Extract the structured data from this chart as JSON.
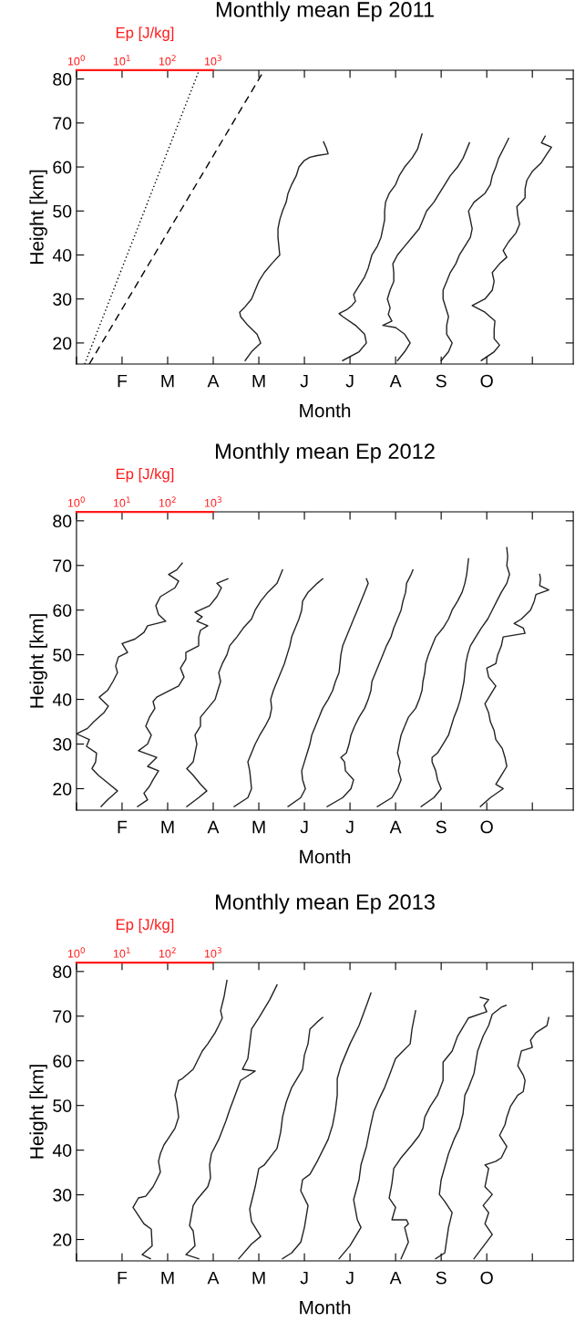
{
  "chart_data": [
    {
      "type": "line",
      "title": "Monthly mean Ep 2011",
      "x2label": "Ep [J/kg]",
      "ylabel": "Height [km]",
      "xlabel": "Month",
      "log": "x2",
      "x2lim": [
        1,
        79000000000
      ],
      "x2ticks": [
        {
          "value": 1,
          "label": "10$^{0}$"
        },
        {
          "value": 10,
          "label": "10$^{1}$"
        },
        {
          "value": 100,
          "label": "10$^{2}$"
        },
        {
          "value": 1000,
          "label": "10$^{3}$"
        },
        {
          "value": 10000,
          "label": null
        },
        {
          "value": 100000,
          "label": null
        },
        {
          "value": 1000000,
          "label": null
        },
        {
          "value": 10000000,
          "label": null
        },
        {
          "value": 100000000,
          "label": null
        },
        {
          "value": 1000000000,
          "label": null
        },
        {
          "value": 10000000000,
          "label": null
        }
      ],
      "categories": [
        null,
        "F",
        "M",
        "A",
        "M",
        "J",
        "J",
        "A",
        "S",
        "O",
        null
      ],
      "ylim": [
        15.2,
        82
      ],
      "yticks": [
        20,
        30,
        40,
        50,
        60,
        70,
        80
      ],
      "series": [
        {
          "axis": "x2",
          "color": "#000000",
          "line_style": "dotted",
          "x": [
            1.51,
            479
          ],
          "values": [
            15.2,
            81.7
          ]
        },
        {
          "axis": "x2",
          "color": "#000000",
          "line_style": "dashed",
          "x": [
            1.91,
            12600
          ],
          "values": [
            15.2,
            81.7
          ]
        },
        {
          "axis": "x2",
          "color": "#222222",
          "x": [
            5010.0,
            6920.0,
            11000.0,
            9120.0,
            5750.0,
            3980.0,
            3800.0,
            4790.0,
            6920.0,
            8320.0,
            10000.0,
            13200.0,
            19100.0,
            28800.0,
            27500.0,
            26300.0,
            26300.0,
            28800.0,
            33100.0,
            39800.0,
            43700.0,
            52500.0,
            66100.0,
            75900.0,
            100000.0,
            132000.0,
            191000.0,
            331000.0,
            302000.0,
            263000.0
          ],
          "values": [
            16,
            18,
            20,
            22,
            24,
            26,
            27,
            28,
            30,
            32,
            34,
            36,
            38,
            40,
            42,
            44,
            46,
            48,
            50,
            52,
            54,
            56,
            58,
            60,
            61.5,
            62.2,
            62.6,
            63,
            64.3,
            65.7
          ]
        },
        {
          "axis": "x2",
          "color": "#222222",
          "x": [
            692000.0,
            1580000.0,
            2290000.0,
            2090000.0,
            1320000.0,
            692000.0,
            575000.0,
            832000.0,
            1100000.0,
            1320000.0,
            1200000.0,
            1580000.0,
            2090000.0,
            2510000.0,
            3020000.0,
            3980000.0,
            4790000.0,
            5250000.0,
            5750000.0,
            5750000.0,
            6030000.0,
            7240000.0,
            10000000.0,
            12000000.0,
            15800000.0,
            22900000.0,
            30200000.0,
            38000000.0
          ],
          "values": [
            16,
            18,
            20,
            22,
            24,
            26,
            26.7,
            27.5,
            28.5,
            29.5,
            31,
            33,
            35,
            37,
            40,
            42,
            44,
            46,
            48,
            50,
            52,
            54,
            56,
            58,
            60,
            62,
            64,
            67.5
          ]
        },
        {
          "axis": "x2",
          "color": "#222222",
          "x": [
            11000000.0,
            15800000.0,
            20900000.0,
            15800000.0,
            10000000.0,
            5250000.0,
            8320000.0,
            6920000.0,
            7590000.0,
            6610000.0,
            7590000.0,
            9120000.0,
            9120000.0,
            8710000.0,
            11000000.0,
            15800000.0,
            22900000.0,
            33100000.0,
            39800000.0,
            47900000.0,
            69200000.0,
            91200000.0,
            120000000.0,
            158000000.0,
            229000000.0,
            302000000.0,
            417000000.0
          ],
          "values": [
            16,
            18,
            20,
            22,
            23.5,
            24,
            25,
            26.5,
            28,
            30,
            32,
            34,
            36,
            38,
            40,
            42,
            44,
            46,
            48,
            50,
            52,
            54,
            56,
            58,
            60,
            62,
            65.5
          ]
        },
        {
          "axis": "x2",
          "color": "#222222",
          "x": [
            100000000.0,
            145000000.0,
            174000000.0,
            132000000.0,
            132000000.0,
            145000000.0,
            126000000.0,
            110000000.0,
            110000000.0,
            132000000.0,
            158000000.0,
            209000000.0,
            251000000.0,
            331000000.0,
            437000000.0,
            479000000.0,
            437000000.0,
            398000000.0,
            525000000.0,
            912000000.0,
            1200000000.0,
            1320000000.0,
            1580000000.0,
            1820000000.0,
            2290000000.0,
            3020000000.0
          ],
          "values": [
            16,
            18,
            20,
            22,
            24,
            26,
            28,
            30,
            32,
            34,
            36,
            38,
            40,
            42,
            44,
            46,
            48,
            50,
            52,
            54,
            56,
            58,
            60,
            62,
            64,
            66.5
          ]
        },
        {
          "axis": "x2",
          "color": "#222222",
          "x": [
            759000000.0,
            1450000000.0,
            1910000000.0,
            1450000000.0,
            1450000000.0,
            1510000000.0,
            912000000.0,
            479000000.0,
            912000000.0,
            1320000000.0,
            1450000000.0,
            1320000000.0,
            1910000000.0,
            2750000000.0,
            2290000000.0,
            3020000000.0,
            4370000000.0,
            5250000000.0,
            4790000000.0,
            4570000000.0,
            6920000000.0,
            6920000000.0,
            7590000000.0,
            10000000000.0,
            15800000000.0,
            20900000000.0,
            26300000000.0,
            15800000000.0,
            19100000000.0
          ],
          "values": [
            16,
            18,
            19.5,
            21,
            23,
            25,
            27,
            28.5,
            30,
            32,
            34,
            36,
            38,
            39.5,
            41,
            43,
            45,
            47,
            49,
            51,
            53,
            55,
            57,
            59,
            61,
            63,
            64.5,
            65.5,
            67
          ]
        }
      ]
    },
    {
      "type": "line",
      "title": "Monthly mean Ep 2012",
      "x2label": "Ep [J/kg]",
      "ylabel": "Height [km]",
      "xlabel": "Month",
      "log": "x2",
      "x2lim": [
        1,
        79000000000
      ],
      "x2ticks": [
        {
          "value": 1,
          "label": "10$^{0}$"
        },
        {
          "value": 10,
          "label": "10$^{1}$"
        },
        {
          "value": 100,
          "label": "10$^{2}$"
        },
        {
          "value": 1000,
          "label": "10$^{3}$"
        },
        {
          "value": 10000,
          "label": null
        },
        {
          "value": 100000,
          "label": null
        },
        {
          "value": 1000000,
          "label": null
        },
        {
          "value": 10000000,
          "label": null
        },
        {
          "value": 100000000,
          "label": null
        },
        {
          "value": 1000000000,
          "label": null
        },
        {
          "value": 10000000000,
          "label": null
        }
      ],
      "categories": [
        null,
        "F",
        "M",
        "A",
        "M",
        "J",
        "J",
        "A",
        "S",
        "O",
        null
      ],
      "ylim": [
        15.2,
        82
      ],
      "yticks": [
        20,
        30,
        40,
        50,
        60,
        70,
        80
      ],
      "series": [
        {
          "axis": "x2",
          "color": "#222222",
          "x": [
            3.47,
            4.79,
            7.94,
            5.25,
            3.02,
            2.19,
            2.63,
            2.75,
            1.66,
            1.91,
            1.0,
            1.74,
            2.4,
            3.98,
            5.01,
            3.16,
            4.79,
            6.31,
            7.94,
            7.24,
            8.32,
            13.2,
            10.0,
            19.1,
            30.2,
            36.3,
            91.2,
            63.1,
            55.0,
            69.2,
            145,
            174,
            105,
            158,
            209
          ],
          "values": [
            16,
            17.5,
            19.5,
            21,
            23,
            24.5,
            26,
            28,
            29.5,
            31,
            32.3,
            33.5,
            35,
            37,
            38.5,
            40.5,
            42,
            44,
            46,
            47.5,
            49.5,
            50.5,
            52.5,
            53.5,
            55,
            56.5,
            57.5,
            59,
            61,
            63,
            65,
            66.5,
            68,
            69,
            70.5
          ]
        },
        {
          "axis": "x2",
          "color": "#222222",
          "x": [
            21.9,
            36.3,
            30.2,
            39.8,
            47.9,
            63.1,
            36.3,
            57.5,
            22.9,
            36.3,
            43.7,
            33.1,
            39.8,
            52.5,
            47.9,
            57.5,
            110,
            174,
            229,
            191,
            251,
            251,
            479,
            479,
            525,
            759,
            437,
            575,
            398,
            832,
            1200.0,
            1510.0,
            1200.0,
            2090.0
          ],
          "values": [
            16,
            17.5,
            19,
            20.5,
            22,
            24,
            25,
            27,
            28.5,
            30,
            32,
            34,
            36,
            38,
            39.5,
            40.5,
            42,
            43,
            45,
            47,
            49,
            50.5,
            52,
            54,
            55.5,
            56.5,
            57.5,
            58.5,
            59.5,
            61,
            63,
            65,
            66,
            67
          ]
        },
        {
          "axis": "x2",
          "color": "#222222",
          "x": [
            263,
            479,
            724,
            525,
            363,
            263,
            363,
            398,
            437,
            398,
            525,
            525,
            759,
            1100.0,
            1260.0,
            1450.0,
            1320.0,
            1580.0,
            2000.0,
            2290.0,
            3310.0,
            4570.0,
            6920.0,
            8320.0,
            11000.0,
            15800.0,
            25100.0,
            28800.0,
            33100.0
          ],
          "values": [
            16,
            18,
            19.5,
            21,
            23,
            24.5,
            26,
            28,
            30,
            32,
            34,
            36,
            38,
            40,
            42,
            44,
            46,
            48,
            50,
            52,
            54,
            56,
            58,
            60,
            62,
            64,
            66,
            67.5,
            69
          ]
        },
        {
          "axis": "x2",
          "color": "#222222",
          "x": [
            2880.0,
            5750.0,
            6920.0,
            6610.0,
            6310.0,
            5750.0,
            6920.0,
            8320.0,
            10500.0,
            13800.0,
            17400.0,
            19100.0,
            18200.0,
            20900.0,
            25100.0,
            30200.0,
            36300.0,
            41700.0,
            47900.0,
            52500.0,
            63100.0,
            75900.0,
            87100.0,
            91200.0,
            120000.0,
            191000.0,
            251000.0
          ],
          "values": [
            16,
            18,
            20,
            22,
            24,
            26,
            28,
            30,
            32,
            34,
            36,
            38,
            40,
            42,
            44,
            46,
            48,
            50,
            52,
            54,
            56,
            58,
            60,
            62,
            64,
            66,
            67
          ]
        },
        {
          "axis": "x2",
          "color": "#222222",
          "x": [
            43700.0,
            83200.0,
            105000.0,
            91200.0,
            87100.0,
            100000.0,
            115000.0,
            132000.0,
            145000.0,
            174000.0,
            209000.0,
            251000.0,
            331000.0,
            417000.0,
            479000.0,
            575000.0,
            603000.0,
            631000.0,
            692000.0,
            832000.0,
            1000000.0,
            1200000.0,
            1450000.0,
            1740000.0,
            2090000.0,
            2510000.0,
            2290000.0
          ],
          "values": [
            16,
            18,
            20,
            22,
            24,
            26,
            28,
            30,
            32,
            34,
            36,
            38,
            40,
            42,
            44,
            46,
            48,
            50,
            52,
            54,
            56,
            58,
            60,
            62,
            64,
            66,
            67
          ]
        },
        {
          "axis": "x2",
          "color": "#222222",
          "x": [
            316000.0,
            692000.0,
            1050000.0,
            1200000.0,
            794000.0,
            759000.0,
            631000.0,
            832000.0,
            955000.0,
            1050000.0,
            1260000.0,
            1580000.0,
            2090000.0,
            2510000.0,
            2880000.0,
            3020000.0,
            3630000.0,
            4370000.0,
            5250000.0,
            6310000.0,
            7940000.0,
            9120000.0,
            11000000.0,
            13200000.0,
            14500000.0,
            16600000.0,
            17400000.0,
            21900000.0,
            24000000.0
          ],
          "values": [
            16,
            18,
            20,
            22,
            24,
            26,
            27,
            28,
            30,
            32,
            34,
            36,
            38,
            40,
            42,
            44,
            46,
            48,
            50,
            52,
            54,
            56,
            58,
            60,
            62,
            64,
            66,
            68,
            69
          ]
        },
        {
          "axis": "x2",
          "color": "#222222",
          "x": [
            3980000.0,
            8320000.0,
            11000000.0,
            13200000.0,
            11500000.0,
            12600000.0,
            11000000.0,
            12000000.0,
            13200000.0,
            15800000.0,
            19100000.0,
            27500000.0,
            33100000.0,
            38000000.0,
            39800000.0,
            43700000.0,
            45700000.0,
            52500000.0,
            63100000.0,
            75900000.0,
            110000000.0,
            145000000.0,
            174000000.0,
            229000000.0,
            288000000.0,
            331000000.0,
            363000000.0,
            398000000.0
          ],
          "values": [
            16,
            18,
            20,
            22,
            24,
            26,
            28,
            30,
            32,
            34,
            36,
            38,
            40,
            42,
            44,
            46,
            48,
            50,
            52,
            54,
            56,
            58,
            60,
            62,
            64,
            66,
            68,
            71.5
          ]
        },
        {
          "axis": "x2",
          "color": "#222222",
          "x": [
            36300000.0,
            69200000.0,
            100000000.0,
            83200000.0,
            75900000.0,
            63100000.0,
            63100000.0,
            83200000.0,
            110000000.0,
            145000000.0,
            166000000.0,
            191000000.0,
            229000000.0,
            263000000.0,
            288000000.0,
            316000000.0,
            331000000.0,
            347000000.0,
            380000000.0,
            437000000.0,
            575000000.0,
            759000000.0,
            1050000000.0,
            1320000000.0,
            1660000000.0,
            2090000000.0,
            2750000000.0,
            3160000000.0,
            2750000000.0,
            2880000000.0,
            2750000000.0
          ],
          "values": [
            16,
            18,
            20,
            22,
            24,
            26,
            27,
            28,
            30,
            32,
            34,
            36,
            38,
            40,
            42,
            44,
            46,
            48,
            50,
            52,
            54,
            56,
            58,
            60,
            62,
            64,
            66,
            68,
            70,
            72,
            74
          ]
        },
        {
          "axis": "x2",
          "color": "#222222",
          "x": [
            724000000.0,
            1200000000.0,
            2290000000.0,
            1580000000.0,
            2090000000.0,
            2750000000.0,
            2510000000.0,
            2190000000.0,
            1580000000.0,
            1450000000.0,
            1200000000.0,
            1100000000.0,
            912000000.0,
            1200000000.0,
            1580000000.0,
            1100000000.0,
            1000000000.0,
            1580000000.0,
            1740000000.0,
            2090000000.0,
            2290000000.0,
            6920000000.0,
            6310000000.0,
            3980000000.0,
            5750000000.0,
            9120000000.0,
            11000000000.0,
            12000000000.0,
            22900000000.0,
            14500000000.0,
            15100000000.0,
            14500000000.0
          ],
          "values": [
            16,
            18,
            20,
            21,
            23,
            25,
            27,
            29,
            31,
            33,
            35,
            37,
            39,
            41,
            43,
            45,
            47,
            48,
            50,
            52,
            54,
            54.8,
            56,
            57,
            58,
            60,
            62,
            63.5,
            64.5,
            65.5,
            67,
            68
          ]
        }
      ]
    },
    {
      "type": "line",
      "title": "Monthly mean Ep 2013",
      "x2label": "Ep [J/kg]",
      "ylabel": "Height [km]",
      "xlabel": "Month",
      "log": "x2",
      "x2lim": [
        1,
        79000000000
      ],
      "x2ticks": [
        {
          "value": 1,
          "label": "10$^{0}$"
        },
        {
          "value": 10,
          "label": "10$^{1}$"
        },
        {
          "value": 100,
          "label": "10$^{2}$"
        },
        {
          "value": 1000,
          "label": "10$^{3}$"
        },
        {
          "value": 10000,
          "label": null
        },
        {
          "value": 100000,
          "label": null
        },
        {
          "value": 1000000,
          "label": null
        },
        {
          "value": 10000000,
          "label": null
        },
        {
          "value": 100000000,
          "label": null
        },
        {
          "value": 1000000000,
          "label": null
        },
        {
          "value": 10000000000,
          "label": null
        }
      ],
      "categories": [
        null,
        "F",
        "M",
        "A",
        "M",
        "J",
        "J",
        "A",
        "S",
        "O",
        null
      ],
      "ylim": [
        15.2,
        82
      ],
      "yticks": [
        20,
        30,
        40,
        50,
        60,
        70,
        80
      ],
      "series": [
        {
          "axis": "x2",
          "color": "#222222",
          "x": [
            41.7,
            27.5,
            45.7,
            43.7,
            30.2,
            17.4,
            22.9,
            33.1,
            47.9,
            57.5,
            69.2,
            63.1,
            69.2,
            83.2,
            100,
            145,
            174,
            158,
            145,
            174,
            209,
            363,
            575,
            759,
            1100.0,
            1320.0,
            1580.0,
            1450.0,
            1740.0,
            2000.0
          ],
          "values": [
            15.7,
            16.6,
            18.6,
            22.3,
            23.5,
            27.2,
            29.3,
            29.7,
            31.8,
            33.4,
            35.1,
            37.5,
            39.2,
            41.2,
            42.4,
            44.9,
            47.4,
            50.7,
            52.3,
            55.6,
            56.0,
            58.1,
            62.2,
            63.8,
            66.3,
            67.9,
            69.6,
            71.2,
            74.5,
            78.0
          ]
        },
        {
          "axis": "x2",
          "color": "#222222",
          "x": [
            479,
            251,
            398,
            363,
            302,
            363,
            437,
            759,
            871,
            832,
            912,
            1320.0,
            1910.0,
            2290.0,
            3980.0,
            8320.0,
            4370.0,
            5750.0,
            6310.0,
            6920.0,
            10000.0,
            17400.0,
            25100.0
          ],
          "values": [
            15.7,
            16.6,
            18.6,
            21.9,
            23.1,
            27.6,
            28.9,
            31.8,
            33.8,
            36.7,
            39.2,
            42.4,
            46.6,
            49.0,
            55.6,
            57.7,
            58.1,
            60.5,
            63.8,
            67.1,
            69.6,
            73.7,
            77.0
          ]
        },
        {
          "axis": "x2",
          "color": "#222222",
          "x": [
            3630.0,
            6920.0,
            11000.0,
            6920.0,
            6310.0,
            8320.0,
            10000.0,
            13200.0,
            25100.0,
            30200.0,
            33100.0,
            39800.0,
            52500.0,
            91200.0,
            100000.0,
            120000.0,
            132000.0,
            191000.0,
            251000.0
          ],
          "values": [
            15.7,
            19.0,
            20.7,
            24.0,
            26.8,
            31.8,
            35.9,
            36.7,
            40.4,
            44.1,
            47.4,
            50.7,
            54.0,
            58.1,
            61.3,
            63.8,
            67.1,
            68.7,
            69.7
          ]
        },
        {
          "axis": "x2",
          "color": "#222222",
          "x": [
            33100.0,
            52500.0,
            83200.0,
            100000.0,
            120000.0,
            83200.0,
            91200.0,
            132000.0,
            191000.0,
            331000.0,
            417000.0,
            479000.0,
            525000.0,
            525000.0,
            631000.0,
            1000000.0,
            1580000.0,
            2400000.0,
            2880000.0
          ],
          "values": [
            15.7,
            17.0,
            19.4,
            22.7,
            27.6,
            30.9,
            33.4,
            34.6,
            37.5,
            42.4,
            45.7,
            49.0,
            52.3,
            56.0,
            58.9,
            63.8,
            67.9,
            72.9,
            75.2
          ]
        },
        {
          "axis": "x2",
          "color": "#222222",
          "x": [
            575000.0,
            1000000.0,
            1740000.0,
            1450000.0,
            1200000.0,
            1580000.0,
            1740000.0,
            2290000.0,
            2750000.0,
            3310000.0,
            4370000.0,
            5750000.0,
            7590000.0,
            10000000.0,
            14500000.0,
            20900000.0,
            22900000.0,
            27500000.0
          ],
          "values": [
            15.7,
            18.6,
            22.7,
            24.4,
            28.9,
            33.4,
            36.7,
            40.8,
            44.9,
            48.6,
            51.5,
            54.0,
            57.2,
            60.5,
            62.2,
            63.8,
            67.1,
            71.2
          ]
        },
        {
          "axis": "x2",
          "color": "#222222",
          "x": [
            13200000.0,
            19100000.0,
            15800000.0,
            19100000.0,
            17400000.0,
            8320000.0,
            10000000.0,
            7240000.0,
            8320000.0,
            9120000.0,
            11000000.0,
            13200000.0,
            22900000.0,
            33100000.0,
            39800000.0,
            43700000.0,
            57500000.0,
            83200000.0,
            110000000.0,
            110000000.0,
            174000000.0,
            229000000.0,
            398000000.0,
            1000000000.0,
            871000000.0,
            1100000000.0,
            724000000.0
          ],
          "values": [
            15.7,
            19.4,
            22.7,
            23.5,
            24.4,
            24.4,
            27.2,
            29.3,
            32.6,
            35.9,
            37.1,
            38.3,
            41.2,
            43.3,
            44.9,
            47.4,
            49.8,
            52.3,
            55.6,
            59.7,
            62.2,
            65.5,
            69.6,
            71.0,
            72.4,
            73.7,
            74.2
          ]
        },
        {
          "axis": "x2",
          "color": "#222222",
          "x": [
            75900000.0,
            120000000.0,
            145000000.0,
            174000000.0,
            120000000.0,
            91200000.0,
            100000000.0,
            145000000.0,
            191000000.0,
            251000000.0,
            302000000.0,
            331000000.0,
            398000000.0,
            525000000.0,
            631000000.0,
            832000000.0,
            1100000000.0,
            1320000000.0,
            2090000000.0,
            2630000000.0
          ],
          "values": [
            15.7,
            17.0,
            22.7,
            26.0,
            28.5,
            30.1,
            33.4,
            39.2,
            42.4,
            44.9,
            48.2,
            52.3,
            54.0,
            57.2,
            62.2,
            65.5,
            67.9,
            70.4,
            72.0,
            72.4
          ]
        },
        {
          "axis": "x2",
          "color": "#222222",
          "x": [
            525000000.0,
            1320000000.0,
            912000000.0,
            1100000000.0,
            832000000.0,
            1320000000.0,
            912000000.0,
            1100000000.0,
            912000000.0,
            1580000000.0,
            2090000000.0,
            2750000000.0,
            1910000000.0,
            2510000000.0,
            2750000000.0,
            3310000000.0,
            4790000000.0,
            6310000000.0,
            6920000000.0,
            6310000000.0,
            4790000000.0,
            5750000000.0,
            10000000000.0,
            9120000000.0,
            12000000000.0,
            20900000000.0,
            22900000000.0
          ],
          "values": [
            15.7,
            21.1,
            23.5,
            26.0,
            27.6,
            30.1,
            31.8,
            35.9,
            36.7,
            37.5,
            38.3,
            40.8,
            43.3,
            45.7,
            47.4,
            49.8,
            52.3,
            53.1,
            55.6,
            56.8,
            58.9,
            62.2,
            63.0,
            64.6,
            66.3,
            67.9,
            69.7
          ]
        }
      ]
    }
  ]
}
